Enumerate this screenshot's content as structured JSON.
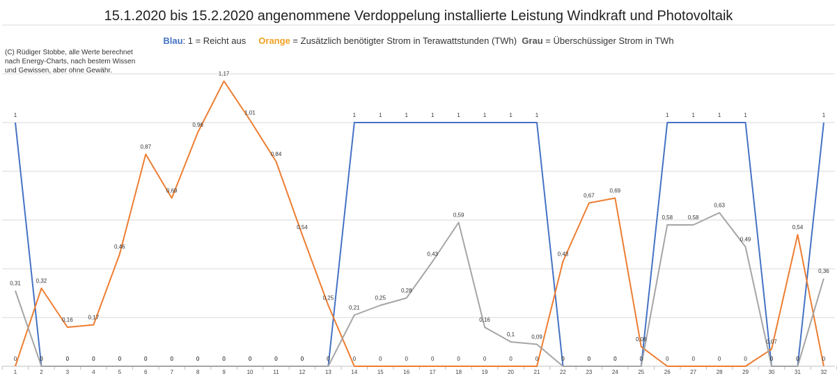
{
  "chart_data": {
    "type": "line",
    "title": "15.1.2020 bis 15.2.2020 angenommene Verdoppelung installierte Leistung Windkraft und Photovoltaik",
    "legend_text": {
      "blue_key": "Blau",
      "blue_text": ": 1 = Reicht aus",
      "orange_key": "Orange",
      "orange_text": "= Zusätzlich benötigter Strom in Terawattstunden (TWh)",
      "gray_key": "Grau",
      "gray_text": "= Überschüssiger Strom in TWh"
    },
    "note": "(C) Rüdiger Stobbe, alle Werte berechnet nach Energy-Charts, nach bestem Wissen und Gewissen, aber ohne Gewähr.",
    "categories": [
      "1",
      "2",
      "3",
      "4",
      "5",
      "6",
      "7",
      "8",
      "9",
      "10",
      "11",
      "12",
      "13",
      "14",
      "15",
      "16",
      "17",
      "18",
      "19",
      "20",
      "21",
      "22",
      "23",
      "24",
      "25",
      "26",
      "27",
      "28",
      "29",
      "30",
      "31",
      "32"
    ],
    "ylim": [
      0,
      1.5
    ],
    "grid": true,
    "legend_position": "top-center",
    "series": [
      {
        "key": "blue",
        "color": "#4472c4",
        "values": [
          1,
          0,
          0,
          0,
          0,
          0,
          0,
          0,
          0,
          0,
          0,
          0,
          0,
          1,
          1,
          1,
          1,
          1,
          1,
          1,
          1,
          0,
          0,
          0,
          0,
          1,
          1,
          1,
          1,
          0,
          0,
          1
        ],
        "labels": [
          "1",
          "0",
          "0",
          "0",
          "0",
          "0",
          "0",
          "0",
          "0",
          "0",
          "0",
          "0",
          "0",
          "1",
          "1",
          "1",
          "1",
          "1",
          "1",
          "1",
          "1",
          "0",
          "0",
          "0",
          "0",
          "1",
          "1",
          "1",
          "1",
          "0",
          "0",
          "1"
        ]
      },
      {
        "key": "orange",
        "color": "#ed7d31",
        "values": [
          0,
          0.32,
          0.16,
          0.17,
          0.46,
          0.87,
          0.69,
          0.96,
          1.17,
          1.01,
          0.84,
          0.54,
          0.25,
          0,
          0,
          0,
          0,
          0,
          0,
          0,
          0,
          0.43,
          0.67,
          0.69,
          0.08,
          0,
          0,
          0,
          0,
          0.07,
          0.54,
          0
        ],
        "labels": [
          "0",
          "0,32",
          "0,16",
          "0,17",
          "0,46",
          "0,87",
          "0,69",
          "0,96",
          "1,17",
          "1,01",
          "0,84",
          "0,54",
          "0,25",
          "0",
          "0",
          "0",
          "0",
          "0",
          "0",
          "0",
          "0",
          "0,43",
          "0,67",
          "0,69",
          "0,08",
          "0",
          "0",
          "0",
          "0",
          "0,07",
          "0,54",
          "0"
        ]
      },
      {
        "key": "gray",
        "color": "#a5a5a5",
        "values": [
          0.31,
          0,
          0,
          0,
          0,
          0,
          0,
          0,
          0,
          0,
          0,
          0,
          0,
          0.21,
          0.25,
          0.28,
          0.43,
          0.59,
          0.16,
          0.1,
          0.09,
          0,
          0,
          0,
          0,
          0.58,
          0.58,
          0.63,
          0.49,
          0,
          0,
          0.36
        ],
        "labels": [
          "0,31",
          "0",
          "0",
          "0",
          "0",
          "0",
          "0",
          "0",
          "0",
          "0",
          "0",
          "0",
          "0",
          "0,21",
          "0,25",
          "0,28",
          "0,43",
          "0,59",
          "0,16",
          "0,1",
          "0,09",
          "0",
          "0",
          "0",
          "0",
          "0,58",
          "0,58",
          "0,63",
          "0,49",
          "0",
          "0",
          "0,36"
        ]
      }
    ]
  }
}
